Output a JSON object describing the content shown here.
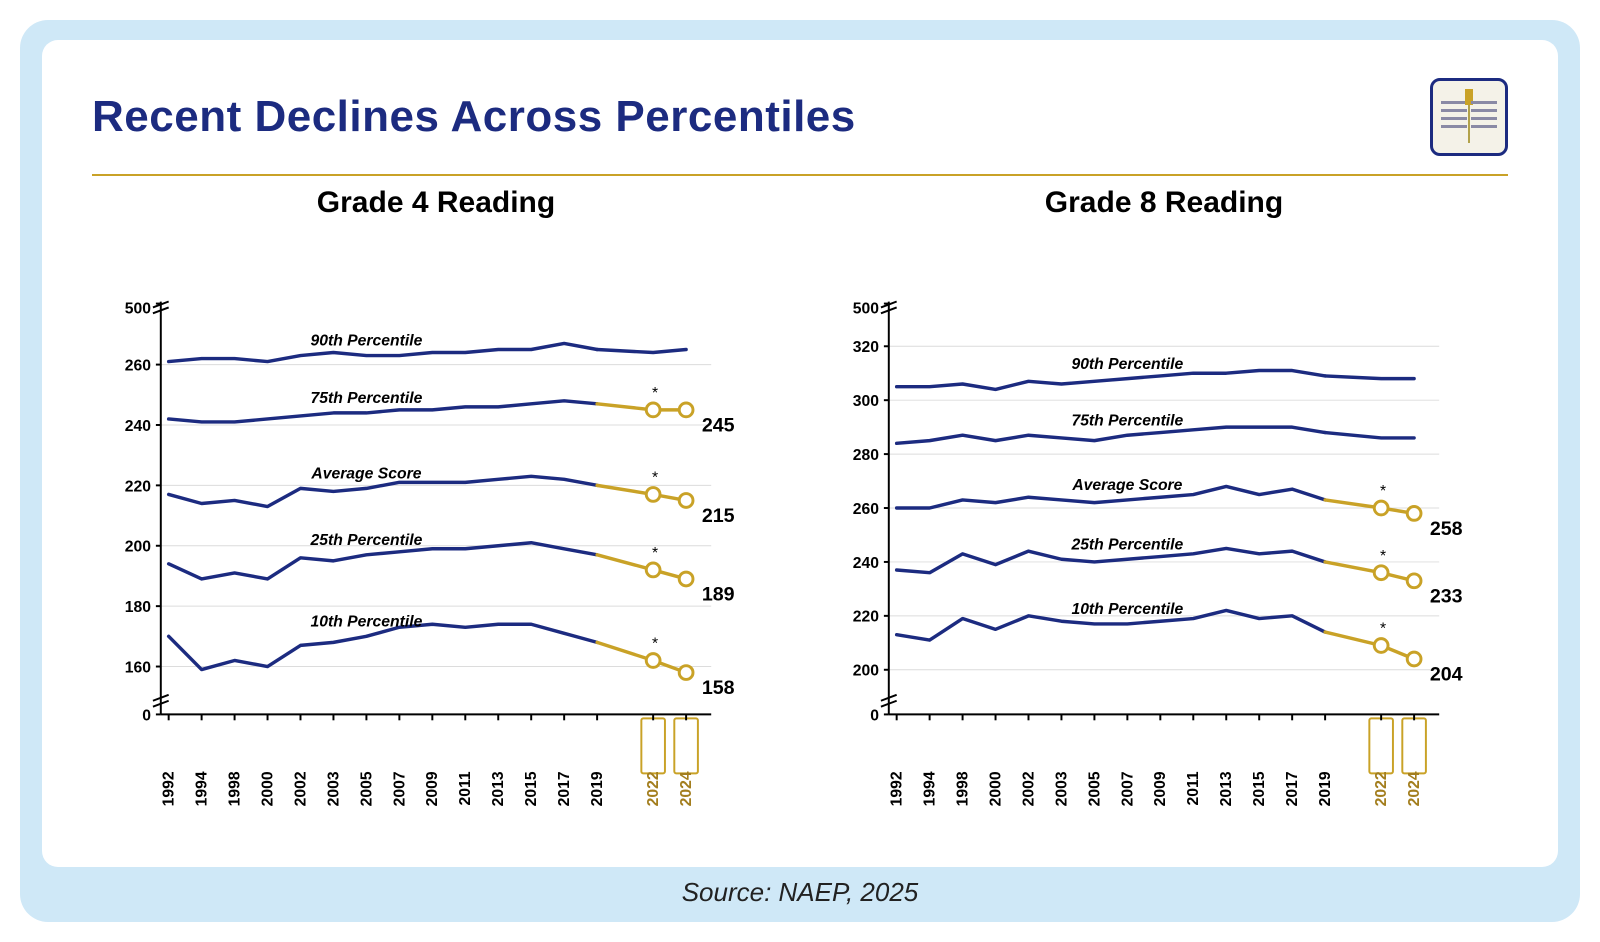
{
  "page": {
    "title": "Recent Declines Across Percentiles",
    "source": "Source: NAEP, 2025",
    "bg_outer": "#cfe8f7",
    "bg_slide": "#ffffff",
    "title_color": "#1c2b80",
    "rule_color": "#c9a227"
  },
  "charts": {
    "grade4": {
      "title": "Grade 4 Reading",
      "type": "line",
      "x_years": [
        1992,
        1994,
        1998,
        2000,
        2002,
        2003,
        2005,
        2007,
        2009,
        2011,
        2013,
        2015,
        2017,
        2019,
        2022,
        2024
      ],
      "y_ticks": [
        0,
        160,
        180,
        200,
        220,
        240,
        260,
        500
      ],
      "y_display_min": 150,
      "y_display_max": 275,
      "line_color": "#1c2b80",
      "highlight_color": "#c9a227",
      "marker_fill": "#ffffff",
      "grid_color": "#dcdcdc",
      "axis_color": "#000000",
      "line_width": 3.5,
      "series": [
        {
          "name": "90th Percentile",
          "label_year": 2005,
          "end_label": null,
          "star": false,
          "values": [
            261,
            262,
            262,
            261,
            263,
            264,
            263,
            263,
            264,
            264,
            265,
            265,
            267,
            265,
            264,
            265
          ]
        },
        {
          "name": "75th Percentile",
          "label_year": 2005,
          "end_label": 245,
          "star": true,
          "values": [
            242,
            241,
            241,
            242,
            243,
            244,
            244,
            245,
            245,
            246,
            246,
            247,
            248,
            247,
            245,
            245
          ]
        },
        {
          "name": "Average Score",
          "label_year": 2005,
          "end_label": 215,
          "star": true,
          "values": [
            217,
            214,
            215,
            213,
            219,
            218,
            219,
            221,
            221,
            221,
            222,
            223,
            222,
            220,
            217,
            215
          ]
        },
        {
          "name": "25th Percentile",
          "label_year": 2005,
          "end_label": 189,
          "star": true,
          "values": [
            194,
            189,
            191,
            189,
            196,
            195,
            197,
            198,
            199,
            199,
            200,
            201,
            199,
            197,
            192,
            189
          ]
        },
        {
          "name": "10th Percentile",
          "label_year": 2005,
          "end_label": 158,
          "star": true,
          "values": [
            170,
            159,
            162,
            160,
            167,
            168,
            170,
            173,
            174,
            173,
            174,
            174,
            171,
            168,
            162,
            158
          ]
        }
      ]
    },
    "grade8": {
      "title": "Grade 8 Reading",
      "type": "line",
      "x_years": [
        1992,
        1994,
        1998,
        2000,
        2002,
        2003,
        2005,
        2007,
        2009,
        2011,
        2013,
        2015,
        2017,
        2019,
        2022,
        2024
      ],
      "y_ticks": [
        0,
        200,
        220,
        240,
        260,
        280,
        300,
        320,
        500
      ],
      "y_display_min": 190,
      "y_display_max": 330,
      "line_color": "#1c2b80",
      "highlight_color": "#c9a227",
      "marker_fill": "#ffffff",
      "grid_color": "#dcdcdc",
      "axis_color": "#000000",
      "line_width": 3.5,
      "series": [
        {
          "name": "90th Percentile",
          "label_year": 2007,
          "end_label": null,
          "star": false,
          "values": [
            305,
            305,
            306,
            304,
            307,
            306,
            307,
            308,
            309,
            310,
            310,
            311,
            311,
            309,
            308,
            308
          ]
        },
        {
          "name": "75th Percentile",
          "label_year": 2007,
          "end_label": null,
          "star": false,
          "values": [
            284,
            285,
            287,
            285,
            287,
            286,
            285,
            287,
            288,
            289,
            290,
            290,
            290,
            288,
            286,
            286
          ]
        },
        {
          "name": "Average Score",
          "label_year": 2007,
          "end_label": 258,
          "star": true,
          "values": [
            260,
            260,
            263,
            262,
            264,
            263,
            262,
            263,
            264,
            265,
            268,
            265,
            267,
            263,
            260,
            258
          ]
        },
        {
          "name": "25th Percentile",
          "label_year": 2007,
          "end_label": 233,
          "star": true,
          "values": [
            237,
            236,
            243,
            239,
            244,
            241,
            240,
            241,
            242,
            243,
            245,
            243,
            244,
            240,
            236,
            233
          ]
        },
        {
          "name": "10th Percentile",
          "label_year": 2007,
          "end_label": 204,
          "star": true,
          "values": [
            213,
            211,
            219,
            215,
            220,
            218,
            217,
            217,
            218,
            219,
            222,
            219,
            220,
            214,
            209,
            204
          ]
        }
      ]
    }
  }
}
